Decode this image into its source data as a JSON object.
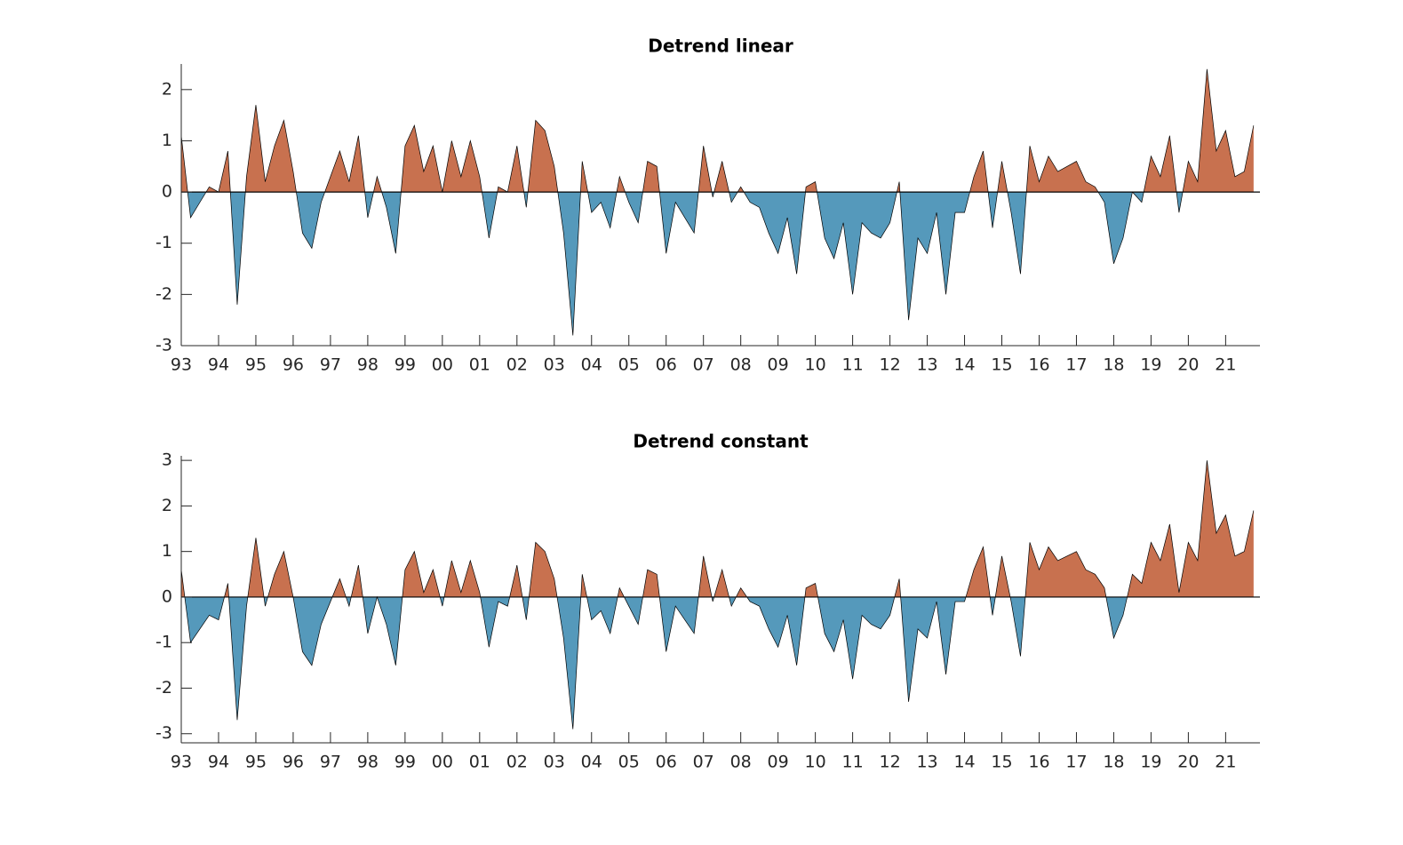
{
  "chart_data": [
    {
      "type": "area",
      "title": "Detrend linear",
      "colors": {
        "positive": "#c8714f",
        "negative": "#5599bb",
        "line": "#000000"
      },
      "xlim": [
        1993,
        2021.92
      ],
      "ylim": [
        -3,
        2.5
      ],
      "yticks": [
        -3,
        -2,
        -1,
        0,
        1,
        2
      ],
      "xticks": [
        {
          "value": 1993,
          "label": "93"
        },
        {
          "value": 1994,
          "label": "94"
        },
        {
          "value": 1995,
          "label": "95"
        },
        {
          "value": 1996,
          "label": "96"
        },
        {
          "value": 1997,
          "label": "97"
        },
        {
          "value": 1998,
          "label": "98"
        },
        {
          "value": 1999,
          "label": "99"
        },
        {
          "value": 2000,
          "label": "00"
        },
        {
          "value": 2001,
          "label": "01"
        },
        {
          "value": 2002,
          "label": "02"
        },
        {
          "value": 2003,
          "label": "03"
        },
        {
          "value": 2004,
          "label": "04"
        },
        {
          "value": 2005,
          "label": "05"
        },
        {
          "value": 2006,
          "label": "06"
        },
        {
          "value": 2007,
          "label": "07"
        },
        {
          "value": 2008,
          "label": "08"
        },
        {
          "value": 2009,
          "label": "09"
        },
        {
          "value": 2010,
          "label": "10"
        },
        {
          "value": 2011,
          "label": "11"
        },
        {
          "value": 2012,
          "label": "12"
        },
        {
          "value": 2013,
          "label": "13"
        },
        {
          "value": 2014,
          "label": "14"
        },
        {
          "value": 2015,
          "label": "15"
        },
        {
          "value": 2016,
          "label": "16"
        },
        {
          "value": 2017,
          "label": "17"
        },
        {
          "value": 2018,
          "label": "18"
        },
        {
          "value": 2019,
          "label": "19"
        },
        {
          "value": 2020,
          "label": "20"
        },
        {
          "value": 2021,
          "label": "21"
        }
      ],
      "x": [
        1993,
        1993.25,
        1993.5,
        1993.75,
        1994,
        1994.25,
        1994.5,
        1994.75,
        1995,
        1995.25,
        1995.5,
        1995.75,
        1996,
        1996.25,
        1996.5,
        1996.75,
        1997,
        1997.25,
        1997.5,
        1997.75,
        1998,
        1998.25,
        1998.5,
        1998.75,
        1999,
        1999.25,
        1999.5,
        1999.75,
        2000,
        2000.25,
        2000.5,
        2000.75,
        2001,
        2001.25,
        2001.5,
        2001.75,
        2002,
        2002.25,
        2002.5,
        2002.75,
        2003,
        2003.25,
        2003.5,
        2003.75,
        2004,
        2004.25,
        2004.5,
        2004.75,
        2005,
        2005.25,
        2005.5,
        2005.75,
        2006,
        2006.25,
        2006.5,
        2006.75,
        2007,
        2007.25,
        2007.5,
        2007.75,
        2008,
        2008.25,
        2008.5,
        2008.75,
        2009,
        2009.25,
        2009.5,
        2009.75,
        2010,
        2010.25,
        2010.5,
        2010.75,
        2011,
        2011.25,
        2011.5,
        2011.75,
        2012,
        2012.25,
        2012.5,
        2012.75,
        2013,
        2013.25,
        2013.5,
        2013.75,
        2014,
        2014.25,
        2014.5,
        2014.75,
        2015,
        2015.25,
        2015.5,
        2015.75,
        2016,
        2016.25,
        2016.5,
        2016.75,
        2017,
        2017.25,
        2017.5,
        2017.75,
        2018,
        2018.25,
        2018.5,
        2018.75,
        2019,
        2019.25,
        2019.5,
        2019.75,
        2020,
        2020.25,
        2020.5,
        2020.75,
        2021,
        2021.25,
        2021.5,
        2021.75
      ],
      "values": [
        1.1,
        -0.5,
        -0.2,
        0.1,
        0.0,
        0.8,
        -2.2,
        0.3,
        1.7,
        0.2,
        0.9,
        1.4,
        0.4,
        -0.8,
        -1.1,
        -0.2,
        0.3,
        0.8,
        0.2,
        1.1,
        -0.5,
        0.3,
        -0.3,
        -1.2,
        0.9,
        1.3,
        0.4,
        0.9,
        0.0,
        1.0,
        0.3,
        1.0,
        0.3,
        -0.9,
        0.1,
        0.0,
        0.9,
        -0.3,
        1.4,
        1.2,
        0.5,
        -0.8,
        -2.8,
        0.6,
        -0.4,
        -0.2,
        -0.7,
        0.3,
        -0.2,
        -0.6,
        0.6,
        0.5,
        -1.2,
        -0.2,
        -0.5,
        -0.8,
        0.9,
        -0.1,
        0.6,
        -0.2,
        0.1,
        -0.2,
        -0.3,
        -0.8,
        -1.2,
        -0.5,
        -1.6,
        0.1,
        0.2,
        -0.9,
        -1.3,
        -0.6,
        -2.0,
        -0.6,
        -0.8,
        -0.9,
        -0.6,
        0.2,
        -2.5,
        -0.9,
        -1.2,
        -0.4,
        -2.0,
        -0.4,
        -0.4,
        0.3,
        0.8,
        -0.7,
        0.6,
        -0.4,
        -1.6,
        0.9,
        0.2,
        0.7,
        0.4,
        0.5,
        0.6,
        0.2,
        0.1,
        -0.2,
        -1.4,
        -0.9,
        0.0,
        -0.2,
        0.7,
        0.3,
        1.1,
        -0.4,
        0.6,
        0.2,
        2.4,
        0.8,
        1.2,
        0.3,
        0.4,
        1.3
      ]
    },
    {
      "type": "area",
      "title": "Detrend constant",
      "colors": {
        "positive": "#c8714f",
        "negative": "#5599bb",
        "line": "#000000"
      },
      "xlim": [
        1993,
        2021.92
      ],
      "ylim": [
        -3.2,
        3.1
      ],
      "yticks": [
        -3,
        -2,
        -1,
        0,
        1,
        2,
        3
      ],
      "xticks": [
        {
          "value": 1993,
          "label": "93"
        },
        {
          "value": 1994,
          "label": "94"
        },
        {
          "value": 1995,
          "label": "95"
        },
        {
          "value": 1996,
          "label": "96"
        },
        {
          "value": 1997,
          "label": "97"
        },
        {
          "value": 1998,
          "label": "98"
        },
        {
          "value": 1999,
          "label": "99"
        },
        {
          "value": 2000,
          "label": "00"
        },
        {
          "value": 2001,
          "label": "01"
        },
        {
          "value": 2002,
          "label": "02"
        },
        {
          "value": 2003,
          "label": "03"
        },
        {
          "value": 2004,
          "label": "04"
        },
        {
          "value": 2005,
          "label": "05"
        },
        {
          "value": 2006,
          "label": "06"
        },
        {
          "value": 2007,
          "label": "07"
        },
        {
          "value": 2008,
          "label": "08"
        },
        {
          "value": 2009,
          "label": "09"
        },
        {
          "value": 2010,
          "label": "10"
        },
        {
          "value": 2011,
          "label": "11"
        },
        {
          "value": 2012,
          "label": "12"
        },
        {
          "value": 2013,
          "label": "13"
        },
        {
          "value": 2014,
          "label": "14"
        },
        {
          "value": 2015,
          "label": "15"
        },
        {
          "value": 2016,
          "label": "16"
        },
        {
          "value": 2017,
          "label": "17"
        },
        {
          "value": 2018,
          "label": "18"
        },
        {
          "value": 2019,
          "label": "19"
        },
        {
          "value": 2020,
          "label": "20"
        },
        {
          "value": 2021,
          "label": "21"
        }
      ],
      "x": [
        1993,
        1993.25,
        1993.5,
        1993.75,
        1994,
        1994.25,
        1994.5,
        1994.75,
        1995,
        1995.25,
        1995.5,
        1995.75,
        1996,
        1996.25,
        1996.5,
        1996.75,
        1997,
        1997.25,
        1997.5,
        1997.75,
        1998,
        1998.25,
        1998.5,
        1998.75,
        1999,
        1999.25,
        1999.5,
        1999.75,
        2000,
        2000.25,
        2000.5,
        2000.75,
        2001,
        2001.25,
        2001.5,
        2001.75,
        2002,
        2002.25,
        2002.5,
        2002.75,
        2003,
        2003.25,
        2003.5,
        2003.75,
        2004,
        2004.25,
        2004.5,
        2004.75,
        2005,
        2005.25,
        2005.5,
        2005.75,
        2006,
        2006.25,
        2006.5,
        2006.75,
        2007,
        2007.25,
        2007.5,
        2007.75,
        2008,
        2008.25,
        2008.5,
        2008.75,
        2009,
        2009.25,
        2009.5,
        2009.75,
        2010,
        2010.25,
        2010.5,
        2010.75,
        2011,
        2011.25,
        2011.5,
        2011.75,
        2012,
        2012.25,
        2012.5,
        2012.75,
        2013,
        2013.25,
        2013.5,
        2013.75,
        2014,
        2014.25,
        2014.5,
        2014.75,
        2015,
        2015.25,
        2015.5,
        2015.75,
        2016,
        2016.25,
        2016.5,
        2016.75,
        2017,
        2017.25,
        2017.5,
        2017.75,
        2018,
        2018.25,
        2018.5,
        2018.75,
        2019,
        2019.25,
        2019.5,
        2019.75,
        2020,
        2020.25,
        2020.5,
        2020.75,
        2021,
        2021.25,
        2021.5,
        2021.75
      ],
      "values": [
        0.6,
        -1.0,
        -0.7,
        -0.4,
        -0.5,
        0.3,
        -2.7,
        -0.2,
        1.3,
        -0.2,
        0.5,
        1.0,
        0.0,
        -1.2,
        -1.5,
        -0.6,
        -0.1,
        0.4,
        -0.2,
        0.7,
        -0.8,
        0.0,
        -0.6,
        -1.5,
        0.6,
        1.0,
        0.1,
        0.6,
        -0.2,
        0.8,
        0.1,
        0.8,
        0.1,
        -1.1,
        -0.1,
        -0.2,
        0.7,
        -0.5,
        1.2,
        1.0,
        0.4,
        -0.9,
        -2.9,
        0.5,
        -0.5,
        -0.3,
        -0.8,
        0.2,
        -0.2,
        -0.6,
        0.6,
        0.5,
        -1.2,
        -0.2,
        -0.5,
        -0.8,
        0.9,
        -0.1,
        0.6,
        -0.2,
        0.2,
        -0.1,
        -0.2,
        -0.7,
        -1.1,
        -0.4,
        -1.5,
        0.2,
        0.3,
        -0.8,
        -1.2,
        -0.5,
        -1.8,
        -0.4,
        -0.6,
        -0.7,
        -0.4,
        0.4,
        -2.3,
        -0.7,
        -0.9,
        -0.1,
        -1.7,
        -0.1,
        -0.1,
        0.6,
        1.1,
        -0.4,
        0.9,
        -0.1,
        -1.3,
        1.2,
        0.6,
        1.1,
        0.8,
        0.9,
        1.0,
        0.6,
        0.5,
        0.2,
        -0.9,
        -0.4,
        0.5,
        0.3,
        1.2,
        0.8,
        1.6,
        0.1,
        1.2,
        0.8,
        3.0,
        1.4,
        1.8,
        0.9,
        1.0,
        1.9
      ]
    }
  ]
}
